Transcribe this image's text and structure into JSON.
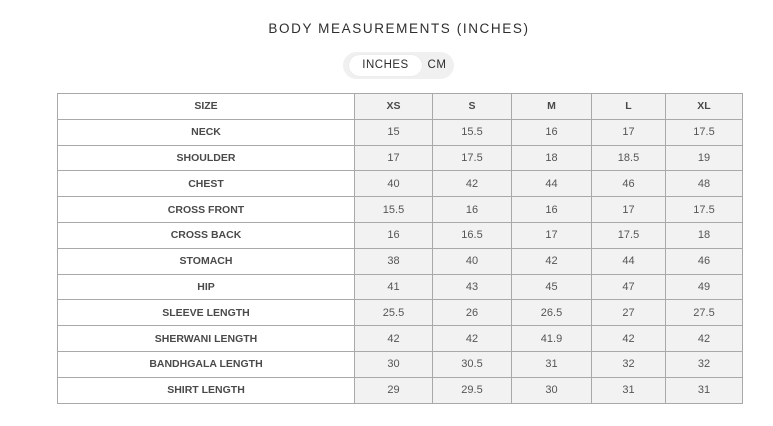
{
  "title": "BODY MEASUREMENTS (INCHES)",
  "unit_toggle": {
    "options": [
      "INCHES",
      "CM"
    ],
    "selected": "INCHES"
  },
  "table": {
    "header_label": "SIZE",
    "sizes": [
      "XS",
      "S",
      "M",
      "L",
      "XL"
    ],
    "rows": [
      {
        "label": "NECK",
        "values": [
          "15",
          "15.5",
          "16",
          "17",
          "17.5"
        ]
      },
      {
        "label": "SHOULDER",
        "values": [
          "17",
          "17.5",
          "18",
          "18.5",
          "19"
        ]
      },
      {
        "label": "CHEST",
        "values": [
          "40",
          "42",
          "44",
          "46",
          "48"
        ]
      },
      {
        "label": "CROSS FRONT",
        "values": [
          "15.5",
          "16",
          "16",
          "17",
          "17.5"
        ]
      },
      {
        "label": "CROSS BACK",
        "values": [
          "16",
          "16.5",
          "17",
          "17.5",
          "18"
        ]
      },
      {
        "label": "STOMACH",
        "values": [
          "38",
          "40",
          "42",
          "44",
          "46"
        ]
      },
      {
        "label": "HIP",
        "values": [
          "41",
          "43",
          "45",
          "47",
          "49"
        ]
      },
      {
        "label": "SLEEVE LENGTH",
        "values": [
          "25.5",
          "26",
          "26.5",
          "27",
          "27.5"
        ]
      },
      {
        "label": "SHERWANI LENGTH",
        "values": [
          "42",
          "42",
          "41.9",
          "42",
          "42"
        ]
      },
      {
        "label": "BANDHGALA LENGTH",
        "values": [
          "30",
          "30.5",
          "31",
          "32",
          "32"
        ]
      },
      {
        "label": "SHIRT LENGTH",
        "values": [
          "29",
          "29.5",
          "30",
          "31",
          "31"
        ]
      }
    ]
  }
}
